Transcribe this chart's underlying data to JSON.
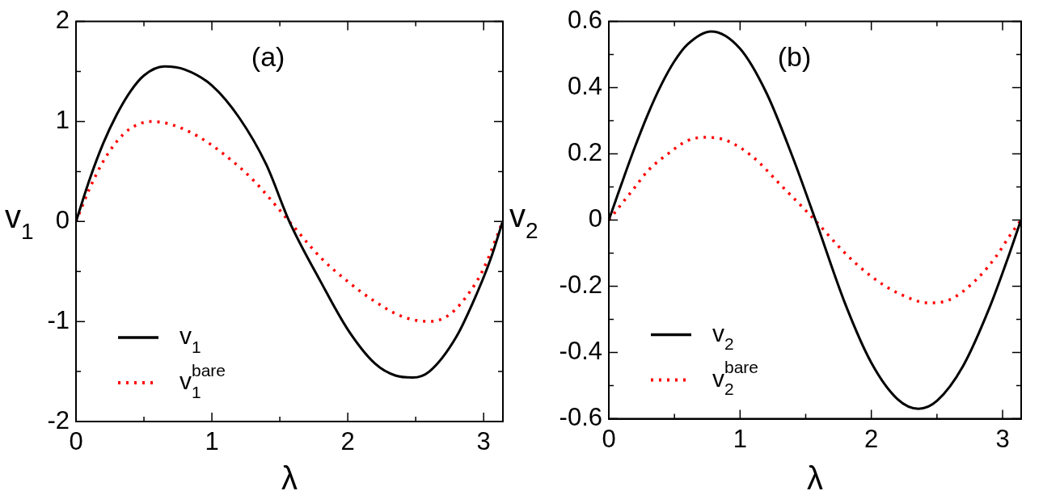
{
  "chart_data": [
    {
      "type": "line",
      "title": "(a)",
      "xlabel": "λ",
      "ylabel": "v$_{1}$",
      "legend": "bottom left",
      "marker": "none",
      "grid": false,
      "xlim": [
        0,
        3.14159
      ],
      "xticks": [
        0,
        {
          "value": 0.5,
          "label": null
        },
        1,
        {
          "value": 1.5,
          "label": null
        },
        2,
        {
          "value": 2.5,
          "label": null
        },
        3
      ],
      "ylim": [
        -2,
        2
      ],
      "yticks": [
        -2,
        {
          "value": -1.5,
          "label": null
        },
        -1,
        {
          "value": -0.5,
          "label": null
        },
        0,
        {
          "value": 0.5,
          "label": null
        },
        1,
        {
          "value": 1.5,
          "label": null
        },
        2
      ],
      "series": [
        {
          "name": "v$_{1}$",
          "color": "#000000",
          "line_style": "solid",
          "x": [
            0,
            0.1,
            0.2,
            0.3,
            0.4,
            0.5,
            0.65,
            0.8,
            1.0,
            1.2,
            1.4,
            1.57,
            1.8,
            2.0,
            2.2,
            2.35,
            2.48,
            2.6,
            2.8,
            2.95,
            3.05,
            3.14
          ],
          "values": [
            0,
            0.42,
            0.78,
            1.07,
            1.3,
            1.46,
            1.55,
            1.52,
            1.36,
            1.04,
            0.57,
            0,
            -0.6,
            -1.08,
            -1.42,
            -1.54,
            -1.56,
            -1.5,
            -1.15,
            -0.72,
            -0.38,
            0
          ]
        },
        {
          "name": "v$_{1}$$^{bare}$",
          "color": "#ff0000",
          "line_style": "dotted",
          "x": [
            0,
            0.1,
            0.2,
            0.3,
            0.4,
            0.55,
            0.7,
            0.9,
            1.1,
            1.3,
            1.57,
            1.8,
            2.0,
            2.2,
            2.4,
            2.6,
            2.75,
            2.9,
            3.0,
            3.14
          ],
          "values": [
            0,
            0.33,
            0.6,
            0.8,
            0.93,
            1.0,
            0.97,
            0.85,
            0.66,
            0.42,
            0,
            -0.36,
            -0.6,
            -0.8,
            -0.95,
            -1.0,
            -0.93,
            -0.7,
            -0.47,
            0
          ]
        }
      ]
    },
    {
      "type": "line",
      "title": "(b)",
      "xlabel": "λ",
      "ylabel": "v$_{2}$",
      "legend": "bottom left",
      "marker": "none",
      "grid": false,
      "xlim": [
        0,
        3.14159
      ],
      "xticks": [
        0,
        {
          "value": 0.5,
          "label": null
        },
        1,
        {
          "value": 1.5,
          "label": null
        },
        2,
        {
          "value": 2.5,
          "label": null
        },
        3
      ],
      "ylim": [
        -0.6,
        0.6
      ],
      "yticks": [
        -0.6,
        {
          "value": -0.5,
          "label": null
        },
        -0.4,
        {
          "value": -0.3,
          "label": null
        },
        -0.2,
        {
          "value": -0.1,
          "label": null
        },
        0,
        {
          "value": 0.1,
          "label": null
        },
        0.2,
        {
          "value": 0.3,
          "label": null
        },
        0.4,
        {
          "value": 0.5,
          "label": null
        },
        0.6
      ],
      "series": [
        {
          "name": "v$_{2}$",
          "color": "#000000",
          "line_style": "solid",
          "x": [
            0,
            0.1,
            0.2,
            0.3,
            0.4,
            0.5,
            0.6,
            0.78,
            1.0,
            1.2,
            1.4,
            1.575,
            1.8,
            2.0,
            2.2,
            2.36,
            2.5,
            2.7,
            2.9,
            3.05,
            3.14
          ],
          "values": [
            0,
            0.113,
            0.222,
            0.322,
            0.409,
            0.48,
            0.531,
            0.57,
            0.518,
            0.385,
            0.191,
            0,
            -0.252,
            -0.431,
            -0.541,
            -0.57,
            -0.546,
            -0.44,
            -0.265,
            -0.104,
            0
          ]
        },
        {
          "name": "v$_{2}$$^{bare}$",
          "color": "#ff0000",
          "line_style": "dotted",
          "x": [
            0,
            0.1,
            0.2,
            0.3,
            0.45,
            0.6,
            0.73,
            0.9,
            1.1,
            1.3,
            1.57,
            1.8,
            2.0,
            2.2,
            2.44,
            2.6,
            2.8,
            2.95,
            3.05,
            3.14
          ],
          "values": [
            0,
            0.05,
            0.1,
            0.15,
            0.2,
            0.24,
            0.25,
            0.24,
            0.19,
            0.11,
            0,
            -0.1,
            -0.17,
            -0.22,
            -0.25,
            -0.24,
            -0.18,
            -0.11,
            -0.05,
            0
          ]
        }
      ]
    }
  ]
}
